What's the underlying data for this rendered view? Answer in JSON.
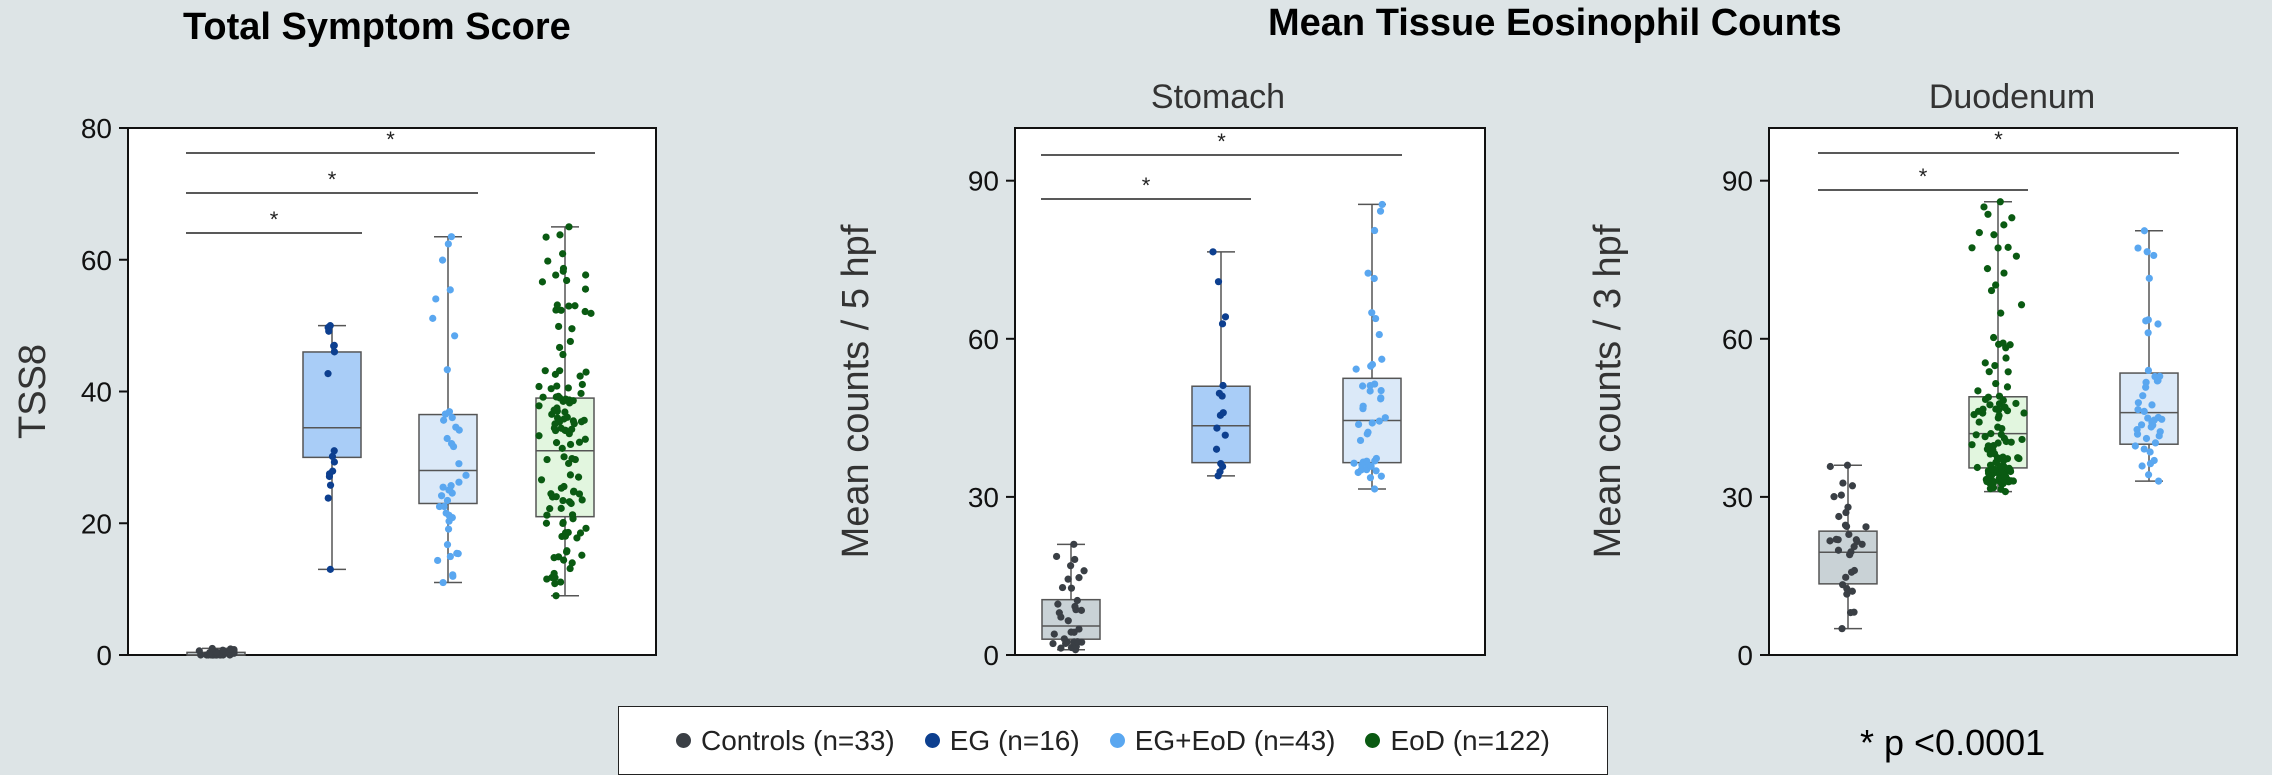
{
  "titles": {
    "total_symptom": "Total Symptom Score",
    "eosinophil": "Mean Tissue Eosinophil Counts"
  },
  "groups": [
    {
      "key": "controls",
      "label": "Controls (n=33)",
      "color": "#3a3f45",
      "box_fill": "#c9d2d6"
    },
    {
      "key": "eg",
      "label": "EG (n=16)",
      "color": "#0d3f8f",
      "box_fill": "#a9cdf7"
    },
    {
      "key": "egeod",
      "label": "EG+EoD (n=43)",
      "color": "#5aa7f0",
      "box_fill": "#dbe9f8"
    },
    {
      "key": "eod",
      "label": "EoD (n=122)",
      "color": "#0a5a12",
      "box_fill": "#e2f6df"
    }
  ],
  "significance_note": "* p <0.0001",
  "chart_data": [
    {
      "type": "box",
      "title": "",
      "ylabel": "TSS8",
      "ylim": [
        0,
        80
      ],
      "yticks": [
        0,
        20,
        40,
        60,
        80
      ],
      "groups": [
        "controls",
        "eg",
        "egeod",
        "eod"
      ],
      "boxes": [
        {
          "group": "controls",
          "min": 0,
          "q1": 0,
          "median": 0,
          "q3": 0.4,
          "max": 1,
          "n": 33
        },
        {
          "group": "eg",
          "min": 13,
          "q1": 30,
          "median": 34.5,
          "q3": 46,
          "max": 50,
          "n": 16
        },
        {
          "group": "egeod",
          "min": 11,
          "q1": 23,
          "median": 28,
          "q3": 36.5,
          "max": 63.5,
          "n": 43
        },
        {
          "group": "eod",
          "min": 9,
          "q1": 21,
          "median": 31,
          "q3": 39,
          "max": 65,
          "n": 122
        }
      ],
      "significance": [
        {
          "from": "controls",
          "to": "eg",
          "label": "*"
        },
        {
          "from": "controls",
          "to": "egeod",
          "label": "*"
        },
        {
          "from": "controls",
          "to": "eod",
          "label": "*"
        }
      ]
    },
    {
      "type": "box",
      "title": "Stomach",
      "ylabel": "Mean counts / 5 hpf",
      "ylim": [
        0,
        100
      ],
      "yticks": [
        0,
        30,
        60,
        90
      ],
      "groups": [
        "controls",
        "eg",
        "egeod"
      ],
      "boxes": [
        {
          "group": "controls",
          "min": 1,
          "q1": 3,
          "median": 5.5,
          "q3": 10.5,
          "max": 21,
          "n": 33
        },
        {
          "group": "eg",
          "min": 34,
          "q1": 36.5,
          "median": 43.5,
          "q3": 51,
          "max": 76.5,
          "n": 16
        },
        {
          "group": "egeod",
          "min": 31.5,
          "q1": 36.5,
          "median": 44.5,
          "q3": 52.5,
          "max": 85.5,
          "n": 43
        }
      ],
      "significance": [
        {
          "from": "controls",
          "to": "eg",
          "label": "*"
        },
        {
          "from": "controls",
          "to": "egeod",
          "label": "*"
        }
      ]
    },
    {
      "type": "box",
      "title": "Duodenum",
      "ylabel": "Mean counts / 3 hpf",
      "ylim": [
        0,
        100
      ],
      "yticks": [
        0,
        30,
        60,
        90
      ],
      "groups": [
        "controls",
        "eod",
        "egeod"
      ],
      "boxes": [
        {
          "group": "controls",
          "min": 5,
          "q1": 13.5,
          "median": 19.5,
          "q3": 23.5,
          "max": 36,
          "n": 33
        },
        {
          "group": "eod",
          "min": 31,
          "q1": 35.5,
          "median": 42,
          "q3": 49,
          "max": 86,
          "n": 122
        },
        {
          "group": "egeod",
          "min": 33,
          "q1": 40,
          "median": 46,
          "q3": 53.5,
          "max": 80.5,
          "n": 43
        }
      ],
      "significance": [
        {
          "from": "controls",
          "to": "eod",
          "label": "*"
        },
        {
          "from": "controls",
          "to": "egeod",
          "label": "*"
        }
      ]
    }
  ]
}
